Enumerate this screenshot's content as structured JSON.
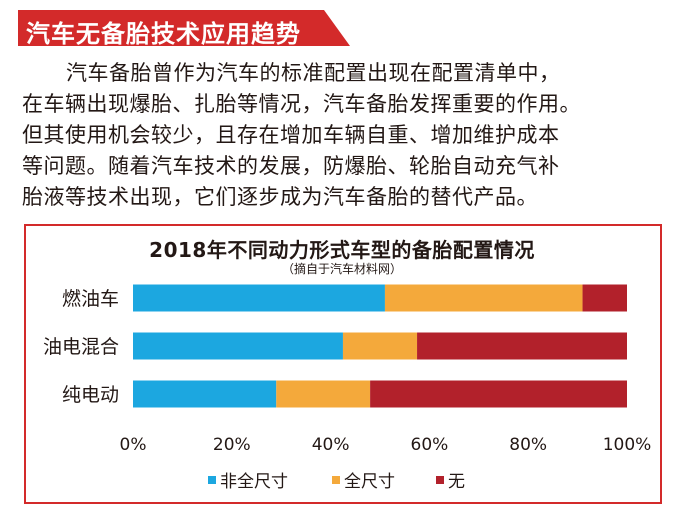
{
  "header": {
    "title": "汽车无备胎技术应用趋势",
    "accent_color": "#d32a2a"
  },
  "paragraph": {
    "lines": [
      "汽车备胎曾作为汽车的标准配置出现在配置清单中，",
      "在车辆出现爆胎、扎胎等情况，汽车备胎发挥重要的作用。",
      "但其使用机会较少，且存在增加车辆自重、增加维护成本",
      "等问题。随着汽车技术的发展，防爆胎、轮胎自动充气补",
      "胎液等技术出现，它们逐步成为汽车备胎的替代产品。"
    ]
  },
  "chart_data": {
    "type": "bar",
    "orientation": "horizontal",
    "stacked": true,
    "title": "2018年不同动力形式车型的备胎配置情况",
    "subtitle": "（摘自于汽车材料网）",
    "categories": [
      "燃油车",
      "油电混合",
      "纯电动"
    ],
    "series": [
      {
        "name": "非全尺寸",
        "color": "#1ca7e0",
        "values": [
          51,
          42.5,
          29
        ]
      },
      {
        "name": "全尺寸",
        "color": "#f4a93b",
        "values": [
          40,
          15,
          19
        ]
      },
      {
        "name": "无",
        "color": "#b2212b",
        "values": [
          9,
          42.5,
          52
        ]
      }
    ],
    "xlim": [
      0,
      100
    ],
    "x_ticks": [
      "0%",
      "20%",
      "40%",
      "60%",
      "80%",
      "100%"
    ],
    "grid": false,
    "legend_position": "bottom"
  }
}
